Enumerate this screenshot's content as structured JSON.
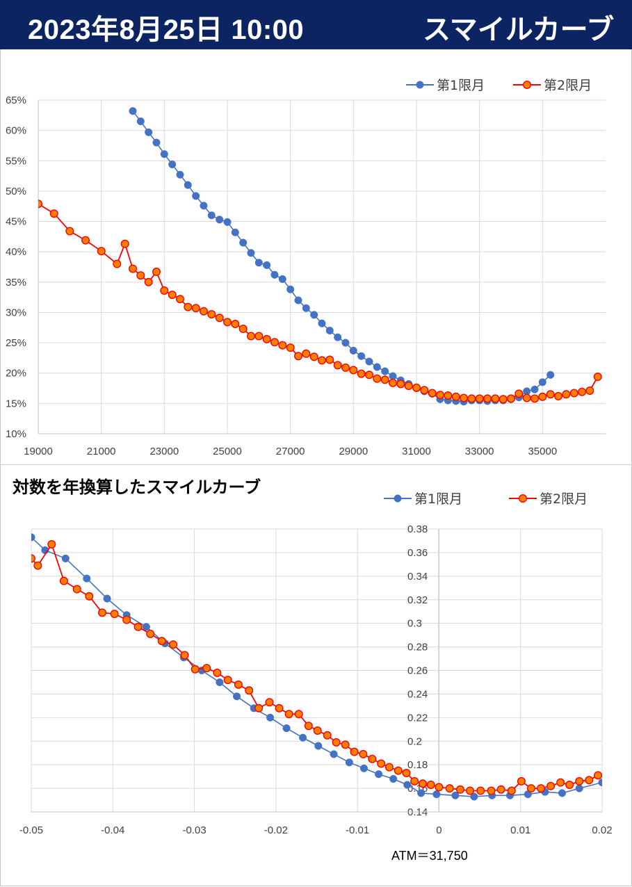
{
  "header": {
    "date": "2023年8月25日 10:00",
    "title": "スマイルカーブ"
  },
  "colors": {
    "header_bg": "#0c2461",
    "series1": "#4472c4",
    "series2": "#ff0000",
    "series2_fill": "#ff7f00"
  },
  "chart_data": [
    {
      "type": "line",
      "title": "",
      "legend": "top-right",
      "grid": true,
      "xlim": [
        19000,
        37000
      ],
      "ylim": [
        10,
        65
      ],
      "x_ticks": [
        "19000",
        "21000",
        "23000",
        "25000",
        "27000",
        "29000",
        "31000",
        "33000",
        "35000"
      ],
      "y_ticks": [
        "10%",
        "15%",
        "20%",
        "25%",
        "30%",
        "35%",
        "40%",
        "45%",
        "50%",
        "55%",
        "60%",
        "65%"
      ],
      "series": [
        {
          "name": "第1限月",
          "x": [
            22000,
            22250,
            22500,
            22750,
            23000,
            23250,
            23500,
            23750,
            24000,
            24250,
            24500,
            24750,
            25000,
            25250,
            25500,
            25750,
            26000,
            26250,
            26500,
            26750,
            27000,
            27250,
            27500,
            27750,
            28000,
            28250,
            28500,
            28750,
            29000,
            29250,
            29500,
            29750,
            30000,
            30250,
            30500,
            30750,
            31000,
            31250,
            31500,
            31750,
            32000,
            32250,
            32500,
            32750,
            33000,
            33250,
            33500,
            33750,
            34000,
            34250,
            34500,
            34750,
            35000,
            35250
          ],
          "values": [
            63.2,
            61.5,
            59.7,
            58.0,
            56.1,
            54.4,
            52.7,
            51.0,
            49.2,
            47.6,
            46.0,
            45.3,
            44.9,
            43.2,
            41.5,
            39.8,
            38.2,
            37.8,
            36.2,
            35.5,
            33.8,
            32.0,
            30.7,
            29.6,
            28.2,
            27.0,
            25.9,
            25.0,
            23.7,
            22.8,
            21.9,
            21.0,
            20.3,
            19.5,
            18.8,
            18.2,
            17.5,
            17.0,
            16.6,
            15.7,
            15.5,
            15.4,
            15.3,
            15.5,
            15.5,
            15.4,
            15.5,
            15.5,
            15.7,
            16.0,
            17.0,
            17.3,
            18.5,
            19.7
          ]
        },
        {
          "name": "第2限月",
          "x": [
            19000,
            19500,
            20000,
            20500,
            21000,
            21500,
            21750,
            22000,
            22250,
            22500,
            22750,
            23000,
            23250,
            23500,
            23750,
            24000,
            24250,
            24500,
            24750,
            25000,
            25250,
            25500,
            25750,
            26000,
            26250,
            26500,
            26750,
            27000,
            27250,
            27500,
            27750,
            28000,
            28250,
            28500,
            28750,
            29000,
            29250,
            29500,
            29750,
            30000,
            30250,
            30500,
            30750,
            31000,
            31250,
            31500,
            31750,
            32000,
            32250,
            32500,
            32750,
            33000,
            33250,
            33500,
            33750,
            34000,
            34250,
            34500,
            34750,
            35000,
            35250,
            35500,
            35750,
            36000,
            36250,
            36500,
            36750
          ],
          "values": [
            47.9,
            46.3,
            43.4,
            41.9,
            40.1,
            38.0,
            41.3,
            37.2,
            36.1,
            35.0,
            36.7,
            33.6,
            32.9,
            32.2,
            30.9,
            30.7,
            30.2,
            29.7,
            29.1,
            28.4,
            28.1,
            27.3,
            26.1,
            26.1,
            25.6,
            25.1,
            24.6,
            24.2,
            22.8,
            23.2,
            22.7,
            22.1,
            22.2,
            21.3,
            20.9,
            20.5,
            19.9,
            19.7,
            19.1,
            18.9,
            18.4,
            18.2,
            17.9,
            17.6,
            17.2,
            16.7,
            16.4,
            16.3,
            16.1,
            15.9,
            15.8,
            15.8,
            15.8,
            15.8,
            15.7,
            15.8,
            16.6,
            15.9,
            15.8,
            16.1,
            16.5,
            16.2,
            16.5,
            16.7,
            16.9,
            17.1,
            19.4
          ]
        }
      ]
    },
    {
      "type": "line",
      "title": "対数を年換算したスマイルカーブ",
      "legend": "top-right",
      "grid": true,
      "xlim": [
        -0.05,
        0.02
      ],
      "ylim": [
        0.14,
        0.38
      ],
      "x_ticks": [
        "-0.05",
        "-0.04",
        "-0.03",
        "-0.02",
        "-0.01",
        "0",
        "0.01",
        "0.02"
      ],
      "y_ticks": [
        "0.14",
        "0.16",
        "0.18",
        "0.2",
        "0.22",
        "0.24",
        "0.26",
        "0.28",
        "0.3",
        "0.32",
        "0.34",
        "0.36",
        "0.38"
      ],
      "annotation": "ATM＝31,750",
      "series": [
        {
          "name": "第1限月",
          "x": [
            -0.05,
            -0.0483,
            -0.0458,
            -0.0432,
            -0.0407,
            -0.0383,
            -0.0359,
            -0.0336,
            -0.0313,
            -0.0291,
            -0.0269,
            -0.0248,
            -0.0227,
            -0.0207,
            -0.0187,
            -0.0167,
            -0.0148,
            -0.0129,
            -0.011,
            -0.0092,
            -0.0074,
            -0.0056,
            -0.0039,
            -0.0022,
            -0.0003,
            0.002,
            0.0043,
            0.0065,
            0.0087,
            0.0109,
            0.013,
            0.0151,
            0.0172,
            0.02
          ],
          "values": [
            0.373,
            0.362,
            0.355,
            0.338,
            0.321,
            0.307,
            0.297,
            0.283,
            0.271,
            0.26,
            0.25,
            0.238,
            0.228,
            0.22,
            0.211,
            0.203,
            0.196,
            0.189,
            0.182,
            0.177,
            0.172,
            0.168,
            0.163,
            0.156,
            0.155,
            0.154,
            0.153,
            0.154,
            0.154,
            0.155,
            0.157,
            0.156,
            0.16,
            0.165
          ]
        },
        {
          "name": "第2限月",
          "x": [
            -0.05,
            -0.0492,
            -0.0475,
            -0.046,
            -0.0444,
            -0.0429,
            -0.0413,
            -0.0398,
            -0.0383,
            -0.0369,
            -0.0354,
            -0.034,
            -0.0326,
            -0.0312,
            -0.0299,
            -0.0285,
            -0.0272,
            -0.0259,
            -0.0246,
            -0.0233,
            -0.0221,
            -0.0208,
            -0.0196,
            -0.0184,
            -0.0172,
            -0.016,
            -0.0149,
            -0.0137,
            -0.0126,
            -0.0115,
            -0.0104,
            -0.0093,
            -0.0082,
            -0.0071,
            -0.0061,
            -0.005,
            -0.004,
            -0.003,
            -0.002,
            -0.001,
            0.0,
            0.0013,
            0.0026,
            0.0038,
            0.0051,
            0.0064,
            0.0076,
            0.0089,
            0.0101,
            0.0113,
            0.0125,
            0.0137,
            0.0149,
            0.016,
            0.0172,
            0.0184,
            0.0195
          ],
          "values": [
            0.355,
            0.349,
            0.367,
            0.336,
            0.329,
            0.323,
            0.309,
            0.308,
            0.303,
            0.297,
            0.291,
            0.285,
            0.282,
            0.273,
            0.261,
            0.262,
            0.258,
            0.252,
            0.248,
            0.243,
            0.228,
            0.233,
            0.228,
            0.223,
            0.223,
            0.213,
            0.209,
            0.205,
            0.199,
            0.197,
            0.191,
            0.189,
            0.185,
            0.181,
            0.178,
            0.175,
            0.173,
            0.166,
            0.164,
            0.163,
            0.161,
            0.16,
            0.159,
            0.158,
            0.158,
            0.158,
            0.159,
            0.158,
            0.166,
            0.16,
            0.16,
            0.162,
            0.165,
            0.163,
            0.166,
            0.167,
            0.171
          ]
        }
      ]
    }
  ]
}
